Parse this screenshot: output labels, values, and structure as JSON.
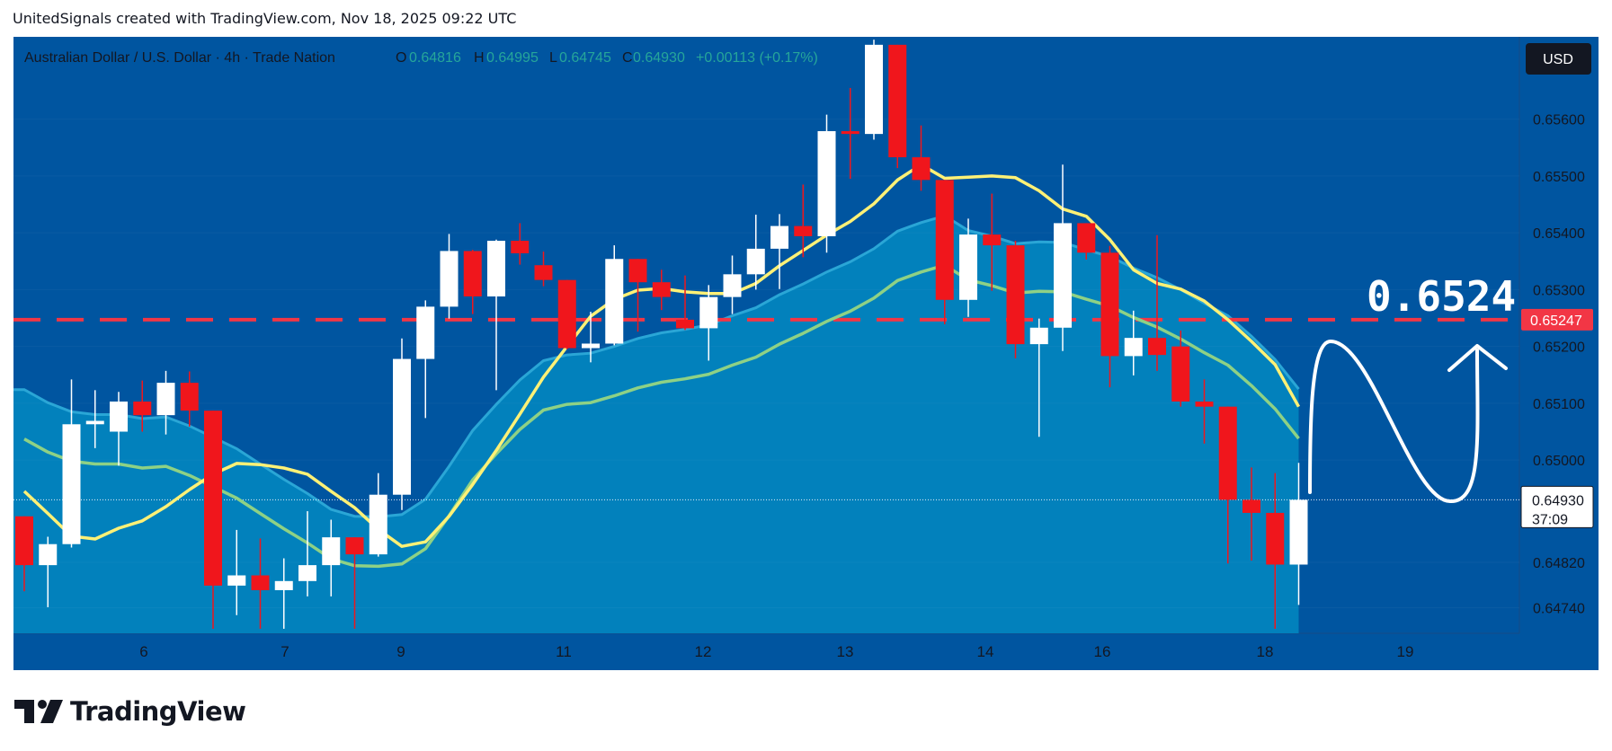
{
  "header": {
    "caption": "UnitedSignals created with TradingView.com, Nov 18, 2025 09:22 UTC"
  },
  "legend": {
    "symbol": "Australian Dollar / U.S. Dollar · 4h · Trade Nation",
    "o_label": "O",
    "o_value": "0.64816",
    "h_label": "H",
    "h_value": "0.64995",
    "l_label": "L",
    "l_value": "0.64745",
    "c_label": "C",
    "c_value": "0.64930",
    "change": "+0.00113 (+0.17%)"
  },
  "currency_badge": "USD",
  "annotation": {
    "level_text": "0.6524"
  },
  "price_labels": {
    "current_price": "0.64930",
    "countdown": "37:09",
    "target_price": "0.65247"
  },
  "brand": {
    "name": "TradingView"
  },
  "colors": {
    "background": "#0055a0",
    "area_fill": "#0281bc",
    "up_candle": "#ffffff",
    "down_candle": "#f0161c",
    "ma_fast": "#fff176",
    "ma_slow": "#8ed185",
    "target_line": "#f23645",
    "text": "#131722"
  },
  "chart_data": {
    "type": "candlestick",
    "symbol": "AUDUSD",
    "timeframe": "4h",
    "x_ticks": [
      "6",
      "7",
      "9",
      "11",
      "12",
      "13",
      "14",
      "16",
      "18",
      "19"
    ],
    "y_ticks": [
      "0.65600",
      "0.65500",
      "0.65400",
      "0.65300",
      "0.65200",
      "0.65100",
      "0.65000",
      "0.64820",
      "0.64740"
    ],
    "ylim": [
      0.64695,
      0.65745
    ],
    "horizontal_line": 0.65247,
    "last_price": 0.6493,
    "candles": [
      {
        "o": 0.64901,
        "h": 0.64901,
        "l": 0.64769,
        "c": 0.64815
      },
      {
        "o": 0.64815,
        "h": 0.64865,
        "l": 0.64741,
        "c": 0.64852
      },
      {
        "o": 0.64852,
        "h": 0.65142,
        "l": 0.64846,
        "c": 0.65063
      },
      {
        "o": 0.65063,
        "h": 0.65123,
        "l": 0.65021,
        "c": 0.65069
      },
      {
        "o": 0.6505,
        "h": 0.6512,
        "l": 0.6499,
        "c": 0.65103
      },
      {
        "o": 0.65103,
        "h": 0.6514,
        "l": 0.6505,
        "c": 0.65079
      },
      {
        "o": 0.65079,
        "h": 0.65157,
        "l": 0.65045,
        "c": 0.65136
      },
      {
        "o": 0.65136,
        "h": 0.65156,
        "l": 0.65059,
        "c": 0.65087
      },
      {
        "o": 0.65087,
        "h": 0.65087,
        "l": 0.64703,
        "c": 0.64779
      },
      {
        "o": 0.64779,
        "h": 0.64877,
        "l": 0.64727,
        "c": 0.64797
      },
      {
        "o": 0.64797,
        "h": 0.64862,
        "l": 0.64703,
        "c": 0.64771
      },
      {
        "o": 0.64771,
        "h": 0.64827,
        "l": 0.64703,
        "c": 0.64787
      },
      {
        "o": 0.64787,
        "h": 0.6491,
        "l": 0.6476,
        "c": 0.64815
      },
      {
        "o": 0.64815,
        "h": 0.64895,
        "l": 0.6476,
        "c": 0.64864
      },
      {
        "o": 0.64864,
        "h": 0.64864,
        "l": 0.64703,
        "c": 0.64834
      },
      {
        "o": 0.64834,
        "h": 0.64977,
        "l": 0.6483,
        "c": 0.64939
      },
      {
        "o": 0.64939,
        "h": 0.65214,
        "l": 0.64912,
        "c": 0.65178
      },
      {
        "o": 0.65178,
        "h": 0.65281,
        "l": 0.65074,
        "c": 0.6527
      },
      {
        "o": 0.6527,
        "h": 0.65398,
        "l": 0.65249,
        "c": 0.65368
      },
      {
        "o": 0.65368,
        "h": 0.6537,
        "l": 0.65257,
        "c": 0.65288
      },
      {
        "o": 0.65288,
        "h": 0.65388,
        "l": 0.65123,
        "c": 0.65386
      },
      {
        "o": 0.65386,
        "h": 0.65417,
        "l": 0.65344,
        "c": 0.65364
      },
      {
        "o": 0.65343,
        "h": 0.65367,
        "l": 0.65306,
        "c": 0.65317
      },
      {
        "o": 0.65317,
        "h": 0.65317,
        "l": 0.65195,
        "c": 0.65197
      },
      {
        "o": 0.65197,
        "h": 0.65261,
        "l": 0.65172,
        "c": 0.65205
      },
      {
        "o": 0.65205,
        "h": 0.65378,
        "l": 0.65202,
        "c": 0.65354
      },
      {
        "o": 0.65354,
        "h": 0.65354,
        "l": 0.65226,
        "c": 0.65313
      },
      {
        "o": 0.65313,
        "h": 0.65335,
        "l": 0.65264,
        "c": 0.65287
      },
      {
        "o": 0.65247,
        "h": 0.65325,
        "l": 0.65229,
        "c": 0.65232
      },
      {
        "o": 0.65232,
        "h": 0.65308,
        "l": 0.65175,
        "c": 0.65287
      },
      {
        "o": 0.65287,
        "h": 0.6536,
        "l": 0.65257,
        "c": 0.65327
      },
      {
        "o": 0.65327,
        "h": 0.65432,
        "l": 0.653,
        "c": 0.65372
      },
      {
        "o": 0.65372,
        "h": 0.65433,
        "l": 0.65301,
        "c": 0.65412
      },
      {
        "o": 0.65412,
        "h": 0.65485,
        "l": 0.65357,
        "c": 0.65394
      },
      {
        "o": 0.65394,
        "h": 0.65608,
        "l": 0.65365,
        "c": 0.65579
      },
      {
        "o": 0.65579,
        "h": 0.65655,
        "l": 0.65495,
        "c": 0.65574
      },
      {
        "o": 0.65574,
        "h": 0.6574,
        "l": 0.65564,
        "c": 0.65731
      },
      {
        "o": 0.65731,
        "h": 0.65731,
        "l": 0.65514,
        "c": 0.65533
      },
      {
        "o": 0.65533,
        "h": 0.65589,
        "l": 0.65474,
        "c": 0.65493
      },
      {
        "o": 0.65493,
        "h": 0.65493,
        "l": 0.65239,
        "c": 0.65282
      },
      {
        "o": 0.65282,
        "h": 0.65425,
        "l": 0.65252,
        "c": 0.65397
      },
      {
        "o": 0.65397,
        "h": 0.65469,
        "l": 0.65298,
        "c": 0.65378
      },
      {
        "o": 0.65378,
        "h": 0.65386,
        "l": 0.65179,
        "c": 0.65204
      },
      {
        "o": 0.65204,
        "h": 0.65249,
        "l": 0.65041,
        "c": 0.65233
      },
      {
        "o": 0.65233,
        "h": 0.6552,
        "l": 0.65192,
        "c": 0.65417
      },
      {
        "o": 0.65417,
        "h": 0.65417,
        "l": 0.65353,
        "c": 0.65365
      },
      {
        "o": 0.65365,
        "h": 0.65377,
        "l": 0.65128,
        "c": 0.65183
      },
      {
        "o": 0.65183,
        "h": 0.65263,
        "l": 0.65149,
        "c": 0.65215
      },
      {
        "o": 0.65215,
        "h": 0.65396,
        "l": 0.65157,
        "c": 0.65185
      },
      {
        "o": 0.652,
        "h": 0.65228,
        "l": 0.65094,
        "c": 0.65103
      },
      {
        "o": 0.65103,
        "h": 0.65142,
        "l": 0.65029,
        "c": 0.65094
      },
      {
        "o": 0.65094,
        "h": 0.65094,
        "l": 0.64818,
        "c": 0.6493
      },
      {
        "o": 0.6493,
        "h": 0.64987,
        "l": 0.64823,
        "c": 0.64907
      },
      {
        "o": 0.64907,
        "h": 0.64977,
        "l": 0.64703,
        "c": 0.64816
      },
      {
        "o": 0.64816,
        "h": 0.64995,
        "l": 0.64745,
        "c": 0.6493
      }
    ],
    "ma_fast": [
      0.64945,
      0.64906,
      0.64866,
      0.64861,
      0.6488,
      0.64893,
      0.64918,
      0.64948,
      0.64975,
      0.64994,
      0.64992,
      0.64986,
      0.64975,
      0.64945,
      0.64916,
      0.64878,
      0.64848,
      0.64856,
      0.64901,
      0.64957,
      0.65017,
      0.65081,
      0.65146,
      0.652,
      0.65253,
      0.65283,
      0.65299,
      0.65302,
      0.65296,
      0.65293,
      0.65293,
      0.65311,
      0.65342,
      0.65369,
      0.65396,
      0.6542,
      0.65451,
      0.65493,
      0.6552,
      0.65496,
      0.65498,
      0.655,
      0.65497,
      0.65474,
      0.65442,
      0.65429,
      0.65388,
      0.65335,
      0.65311,
      0.65301,
      0.6528,
      0.65247,
      0.65209,
      0.65168,
      0.65094
    ],
    "ma_slow": [
      0.65124,
      0.65101,
      0.65085,
      0.6508,
      0.6508,
      0.65073,
      0.65076,
      0.6506,
      0.6504,
      0.6502,
      0.64993,
      0.64966,
      0.64941,
      0.64913,
      0.64901,
      0.649,
      0.64904,
      0.64931,
      0.64989,
      0.65052,
      0.65098,
      0.65141,
      0.65175,
      0.65185,
      0.65188,
      0.652,
      0.65214,
      0.65224,
      0.6523,
      0.65238,
      0.65254,
      0.65268,
      0.65291,
      0.6531,
      0.65331,
      0.65349,
      0.65372,
      0.65403,
      0.65418,
      0.6543,
      0.65404,
      0.65394,
      0.65381,
      0.65384,
      0.65383,
      0.6537,
      0.65358,
      0.65338,
      0.65321,
      0.653,
      0.65276,
      0.65254,
      0.65218,
      0.65177,
      0.65125
    ]
  }
}
